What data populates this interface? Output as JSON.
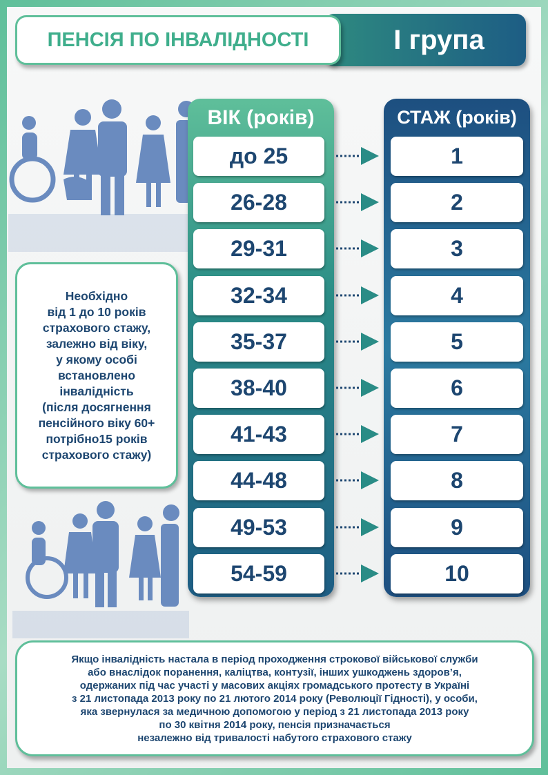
{
  "title": {
    "main": "ПЕНСІЯ ПО ІНВАЛІДНОСТІ",
    "group": "І група"
  },
  "age_column": {
    "header": "ВІК (років)",
    "rows": [
      "до 25",
      "26-28",
      "29-31",
      "32-34",
      "35-37",
      "38-40",
      "41-43",
      "44-48",
      "49-53",
      "54-59"
    ]
  },
  "experience_column": {
    "header": "СТАЖ (років)",
    "rows": [
      "1",
      "2",
      "3",
      "4",
      "5",
      "6",
      "7",
      "8",
      "9",
      "10"
    ]
  },
  "note": {
    "lines": [
      "Необхідно",
      "від 1 до 10 років",
      "страхового стажу,",
      "залежно від віку,",
      "у якому особі",
      "встановлено",
      "інвалідність",
      "(після досягнення",
      "пенсійного віку 60+",
      "потрібно15 років",
      "страхового стажу)"
    ]
  },
  "footer": {
    "lines": [
      "Якщо інвалідність настала в період проходження строкової військової служби",
      "або внаслідок поранення, каліцтва, контузії, інших ушкоджень здоров’я,",
      "одержаних під час участі у масових акціях громадського протесту в Україні",
      "з 21 листопада 2013 року по 21 лютого 2014 року (Революції Гідності), у особи,",
      "яка звернулася  за медичною допомогою у період з 21 листопада 2013 року",
      "по 30 квітня 2014 року, пенсія призначається",
      "незалежно від тривалості набутого страхового стажу"
    ]
  },
  "colors": {
    "teal": "#5fbf9a",
    "navy": "#1d4670",
    "figures": "#6a8bbf"
  },
  "icons": [
    "people-with-disabilities-illustration",
    "dotted-arrow-icon"
  ]
}
